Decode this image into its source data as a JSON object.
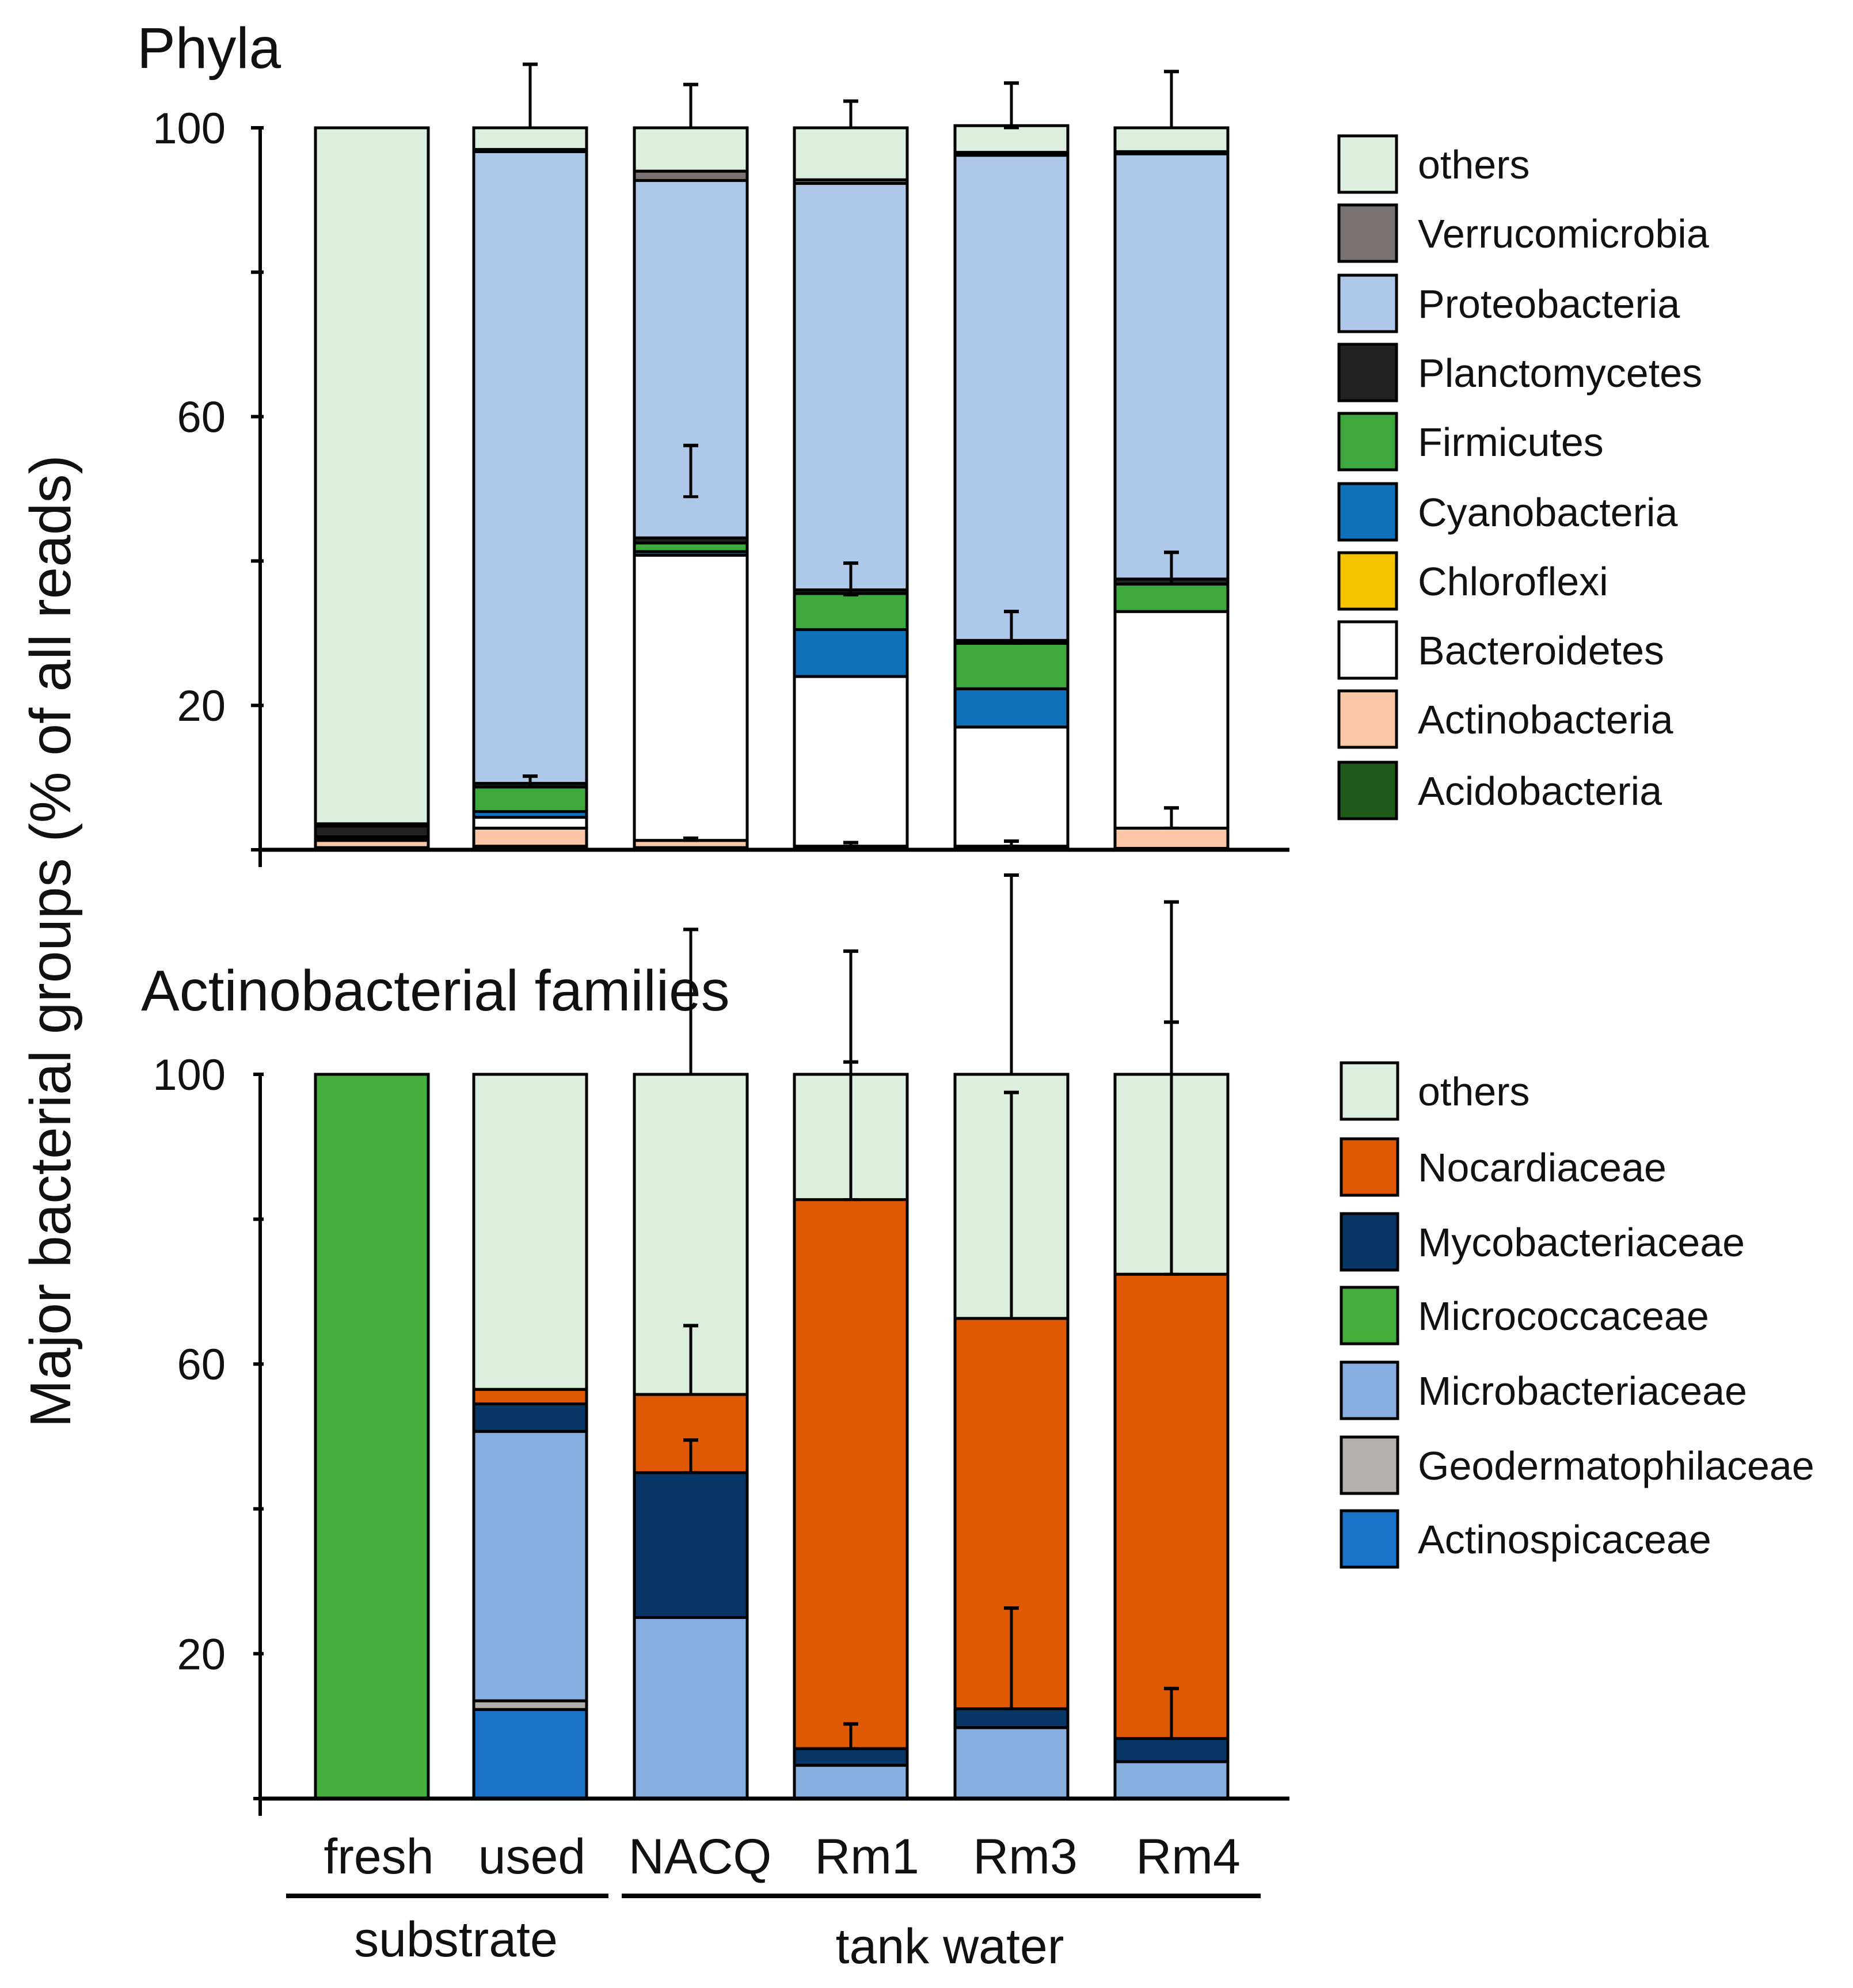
{
  "figure": {
    "y_axis_title": "Major bacterial groups (% of all reads)",
    "categories": [
      "fresh",
      "used",
      "NACQ",
      "Rm1",
      "Rm3",
      "Rm4"
    ],
    "groups": [
      {
        "label": "substrate",
        "members": [
          "fresh",
          "used"
        ]
      },
      {
        "label": "tank water",
        "members": [
          "NACQ",
          "Rm1",
          "Rm3",
          "Rm4"
        ]
      }
    ]
  },
  "chart_data": [
    {
      "type": "bar",
      "stacked": true,
      "title": "Phyla",
      "ylabel": "Major bacterial groups (% of all reads)",
      "ylim": [
        0,
        100
      ],
      "yticks": [
        20,
        60,
        100
      ],
      "categories": [
        "fresh",
        "used",
        "NACQ",
        "Rm1",
        "Rm3",
        "Rm4"
      ],
      "series": [
        {
          "name": "Acidobacteria",
          "color": "#1f5a1a",
          "values": [
            0.3,
            0.5,
            0.3,
            0.2,
            0.2,
            0.2
          ]
        },
        {
          "name": "Actinobacteria",
          "color": "#fcc7a6",
          "values": [
            1.0,
            2.5,
            1.0,
            0.3,
            0.3,
            2.8
          ]
        },
        {
          "name": "Bacteroidetes",
          "color": "#ffffff",
          "values": [
            0.3,
            1.5,
            39.5,
            23.5,
            16.5,
            30.0
          ]
        },
        {
          "name": "Chloroflexi",
          "color": "#f5c200",
          "values": [
            0,
            0,
            0,
            0,
            0,
            0
          ]
        },
        {
          "name": "Cyanobacteria",
          "color": "#0f72b8",
          "values": [
            0.2,
            0.8,
            0.5,
            6.5,
            5.3,
            0
          ]
        },
        {
          "name": "Firmicutes",
          "color": "#3ea83e",
          "values": [
            0,
            3.4,
            1.2,
            5.0,
            6.3,
            3.8
          ]
        },
        {
          "name": "Planctomycetes",
          "color": "#222222",
          "values": [
            1.5,
            0.5,
            0.7,
            0.5,
            0.4,
            0.7
          ]
        },
        {
          "name": "Proteobacteria",
          "color": "#adc8e8",
          "values": [
            0.3,
            87.5,
            49.5,
            56.3,
            67.2,
            58.9
          ]
        },
        {
          "name": "Verrucomicrobia",
          "color": "#7a7272",
          "values": [
            0,
            0.3,
            1.3,
            0.5,
            0.4,
            0.3
          ]
        },
        {
          "name": "others",
          "color": "#dcefdc",
          "values": [
            96.4,
            3.0,
            6.0,
            7.2,
            3.7,
            3.3
          ]
        }
      ],
      "error_bars": [
        {
          "category": "used",
          "series": "others",
          "top": 100.0,
          "error": 8.8
        },
        {
          "category": "used",
          "series": "Firmicutes",
          "top": 8.7,
          "error": 1.5
        },
        {
          "category": "NACQ",
          "series": "others",
          "top": 100.0,
          "error": 6.0
        },
        {
          "category": "NACQ",
          "series": "Proteobacteria",
          "top": 48.9,
          "error": 7.1
        },
        {
          "category": "NACQ",
          "series": "Actinobacteria",
          "top": 1.3,
          "error": 0.3
        },
        {
          "category": "Rm1",
          "series": "others",
          "top": 100.0,
          "error": 3.7
        },
        {
          "category": "Rm1",
          "series": "Firmicutes",
          "top": 35.3,
          "error": 4.4
        },
        {
          "category": "Rm1",
          "series": "Actinobacteria",
          "top": 0.5,
          "error": 0.5
        },
        {
          "category": "Rm3",
          "series": "others",
          "top": 100.0,
          "error": 6.2
        },
        {
          "category": "Rm3",
          "series": "Firmicutes",
          "top": 28.6,
          "error": 4.4
        },
        {
          "category": "Rm3",
          "series": "Actinobacteria",
          "top": 0.5,
          "error": 0.7
        },
        {
          "category": "Rm4",
          "series": "others",
          "top": 100.0,
          "error": 7.8
        },
        {
          "category": "Rm4",
          "series": "Firmicutes",
          "top": 36.8,
          "error": 4.4
        },
        {
          "category": "Rm4",
          "series": "Actinobacteria",
          "top": 3.0,
          "error": 2.8
        }
      ]
    },
    {
      "type": "bar",
      "stacked": true,
      "title": "Actinobacterial families",
      "ylabel": "Major bacterial groups (% of all reads)",
      "ylim": [
        0,
        100
      ],
      "yticks": [
        20,
        60,
        100
      ],
      "categories": [
        "fresh",
        "used",
        "NACQ",
        "Rm1",
        "Rm3",
        "Rm4"
      ],
      "series": [
        {
          "name": "Actinospicaceae",
          "color": "#1a73c9",
          "values": [
            0,
            12.3,
            0,
            0,
            0,
            0
          ]
        },
        {
          "name": "Geodermatophilaceae",
          "color": "#b3b0ae",
          "values": [
            0,
            1.2,
            0,
            0,
            0,
            0
          ]
        },
        {
          "name": "Microbacteriaceae",
          "color": "#86afe0",
          "values": [
            0,
            37.2,
            25.0,
            4.6,
            9.8,
            5.1
          ]
        },
        {
          "name": "Micrococcaceae",
          "color": "#45ae3c",
          "values": [
            100,
            0,
            0,
            0,
            0,
            0
          ]
        },
        {
          "name": "Mycobacteriaceae",
          "color": "#083666",
          "values": [
            0,
            3.8,
            20.0,
            2.3,
            2.6,
            3.2
          ]
        },
        {
          "name": "Nocardiaceae",
          "color": "#e05a05",
          "values": [
            0,
            2.0,
            10.8,
            75.8,
            53.9,
            64.1
          ]
        },
        {
          "name": "others",
          "color": "#dcefdc",
          "values": [
            0,
            43.5,
            44.2,
            17.3,
            33.7,
            27.6
          ]
        }
      ],
      "error_bars": [
        {
          "category": "NACQ",
          "series": "others",
          "top": 100.0,
          "error": 20.0
        },
        {
          "category": "NACQ",
          "series": "Nocardiaceae",
          "top": 55.8,
          "error": 9.5
        },
        {
          "category": "NACQ",
          "series": "Mycobacteriaceae",
          "top": 45.0,
          "error": 4.5
        },
        {
          "category": "Rm1",
          "series": "others",
          "top": 100.0,
          "error": 17.0
        },
        {
          "category": "Rm1",
          "series": "Nocardiaceae",
          "top": 82.7,
          "error": 19.0
        },
        {
          "category": "Rm1",
          "series": "Mycobacteriaceae",
          "top": 6.9,
          "error": 3.4
        },
        {
          "category": "Rm3",
          "series": "others",
          "top": 100.0,
          "error": 27.5
        },
        {
          "category": "Rm3",
          "series": "Nocardiaceae",
          "top": 66.3,
          "error": 31.2
        },
        {
          "category": "Rm3",
          "series": "Mycobacteriaceae",
          "top": 12.4,
          "error": 13.9
        },
        {
          "category": "Rm4",
          "series": "others",
          "top": 100.0,
          "error": 23.8
        },
        {
          "category": "Rm4",
          "series": "Nocardiaceae",
          "top": 72.4,
          "error": 34.8
        },
        {
          "category": "Rm4",
          "series": "Mycobacteriaceae",
          "top": 8.3,
          "error": 6.9
        }
      ]
    }
  ]
}
